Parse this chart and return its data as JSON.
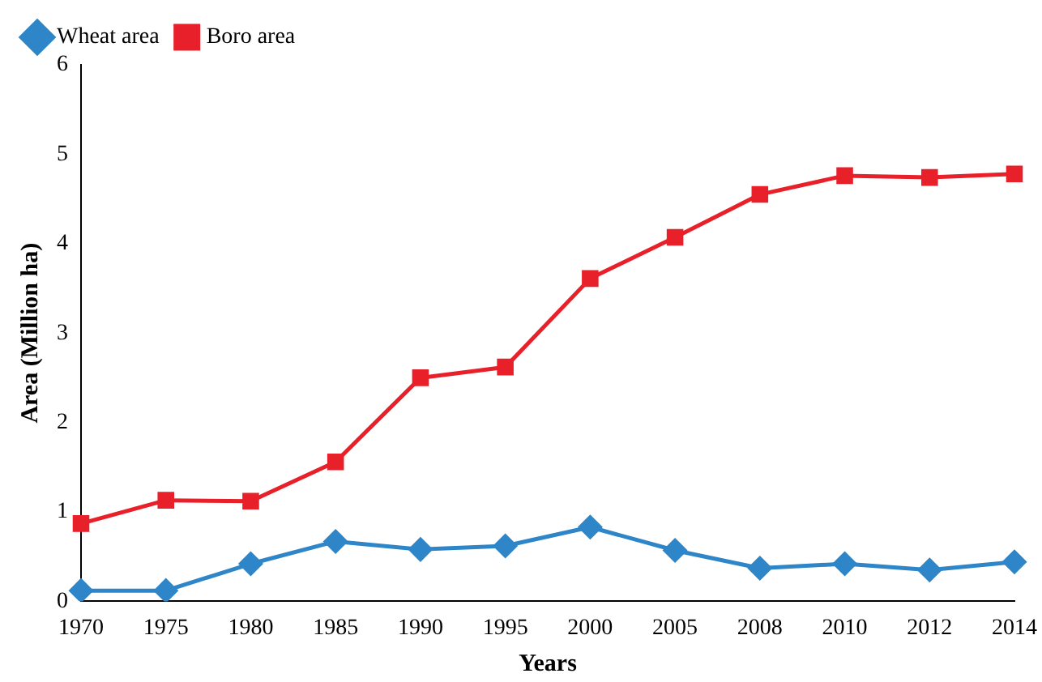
{
  "chart_data": {
    "type": "line",
    "xlabel": "Years",
    "ylabel": "Area (Million ha)",
    "categories": [
      "1970",
      "1975",
      "1980",
      "1985",
      "1990",
      "1995",
      "2000",
      "2005",
      "2008",
      "2010",
      "2012",
      "2014"
    ],
    "series": [
      {
        "name": "Wheat area",
        "color": "#2e86c9",
        "marker": "diamond",
        "values": [
          0.12,
          0.12,
          0.42,
          0.67,
          0.58,
          0.62,
          0.83,
          0.57,
          0.37,
          0.42,
          0.35,
          0.44
        ]
      },
      {
        "name": "Boro area",
        "color": "#e8202a",
        "marker": "square",
        "values": [
          0.87,
          1.13,
          1.12,
          1.56,
          2.5,
          2.62,
          3.61,
          4.07,
          4.55,
          4.76,
          4.74,
          4.78
        ]
      }
    ],
    "ylim": [
      0,
      6
    ],
    "yticks": [
      0,
      1,
      2,
      3,
      4,
      5,
      6
    ],
    "grid": false,
    "legend": "top left",
    "line_style": "solid"
  }
}
